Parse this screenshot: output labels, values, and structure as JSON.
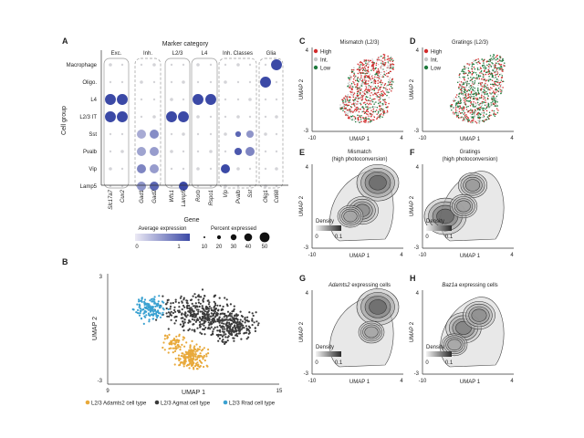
{
  "panels": {
    "A": {
      "letter": "A",
      "title": "Marker category",
      "categories": [
        "Exc.",
        "Inh.",
        "L2/3",
        "L4",
        "Inh. Classes",
        "Glia"
      ],
      "rows": [
        "Macrophage",
        "Oligo.",
        "L4",
        "L2/3 IT",
        "Sst",
        "Pvalb",
        "Vip",
        "Lamp5"
      ],
      "genes": [
        "Slc17a7",
        "Cux2",
        "Gad1",
        "Gad2",
        "Wfs1",
        "Lamp5",
        "Rorb",
        "Rspo1",
        "Vip",
        "Pvalb",
        "Sst",
        "Olig1",
        "Cd68"
      ],
      "y_label": "Cell group",
      "x_label": "Gene",
      "legend_avg_title": "Average expression",
      "legend_avg_ticks": [
        "0",
        "1"
      ],
      "legend_pct_title": "Percent expressed",
      "legend_pct_ticks": [
        "10",
        "20",
        "30",
        "40",
        "50"
      ],
      "colors": {
        "high": "#3b49a6",
        "low": "#e7e7ef",
        "mid": "#8f85c7"
      }
    },
    "B": {
      "letter": "B",
      "xlabel": "UMAP 1",
      "ylabel": "UMAP 2",
      "xticks": [
        "9",
        "15"
      ],
      "yticks": [
        "3",
        "-3"
      ],
      "legend": [
        {
          "label": "L2/3 Adamts2 cell type",
          "color": "#e8a93b"
        },
        {
          "label": "L2/3 Agmat cell type",
          "color": "#3b3b3b"
        },
        {
          "label": "L2/3 Rrad cell type",
          "color": "#3aa1d1"
        }
      ]
    },
    "C": {
      "letter": "C",
      "title": "Mismatch (L2/3)",
      "xlabel": "UMAP 1",
      "ylabel": "UMAP 2",
      "xticks": [
        "-10",
        "4"
      ],
      "yticks": [
        "4",
        "-3"
      ],
      "legend": [
        {
          "label": "High",
          "color": "#d22b2b"
        },
        {
          "label": "Int.",
          "color": "#c7c7c7"
        },
        {
          "label": "Low",
          "color": "#1e7a3c"
        }
      ]
    },
    "D": {
      "letter": "D",
      "title": "Gratings (L2/3)",
      "xlabel": "UMAP 1",
      "ylabel": "UMAP 2",
      "xticks": [
        "-10",
        "4"
      ],
      "yticks": [
        "4",
        "-3"
      ],
      "legend": [
        {
          "label": "High",
          "color": "#d22b2b"
        },
        {
          "label": "Int.",
          "color": "#c7c7c7"
        },
        {
          "label": "Low",
          "color": "#1e7a3c"
        }
      ]
    },
    "E": {
      "letter": "E",
      "title1": "Mismatch",
      "title2": "(high photoconversion)",
      "xlabel": "UMAP 1",
      "ylabel": "UMAP 2",
      "xticks": [
        "-10",
        "4"
      ],
      "yticks": [
        "4",
        "-3"
      ],
      "density_label": "Density",
      "density_ticks": [
        "0",
        "0.1"
      ]
    },
    "F": {
      "letter": "F",
      "title1": "Gratings",
      "title2": "(high photoconversion)",
      "xlabel": "UMAP 1",
      "ylabel": "UMAP 2",
      "xticks": [
        "-10",
        "4"
      ],
      "yticks": [
        "4",
        "-3"
      ],
      "density_label": "Density",
      "density_ticks": [
        "0",
        "0.1"
      ]
    },
    "G": {
      "letter": "G",
      "gene": "Adamts2",
      "title_rest": " expressing cells",
      "xlabel": "UMAP 1",
      "ylabel": "UMAP 2",
      "xticks": [
        "-10",
        "4"
      ],
      "yticks": [
        "4",
        "-3"
      ],
      "density_label": "Density",
      "density_ticks": [
        "0",
        "0.1"
      ]
    },
    "H": {
      "letter": "H",
      "gene": "Baz1a",
      "title_rest": " expressing cells",
      "xlabel": "UMAP 1",
      "ylabel": "UMAP 2",
      "xticks": [
        "-10",
        "4"
      ],
      "yticks": [
        "4",
        "-3"
      ],
      "density_label": "Density",
      "density_ticks": [
        "0",
        "0.1"
      ]
    }
  }
}
